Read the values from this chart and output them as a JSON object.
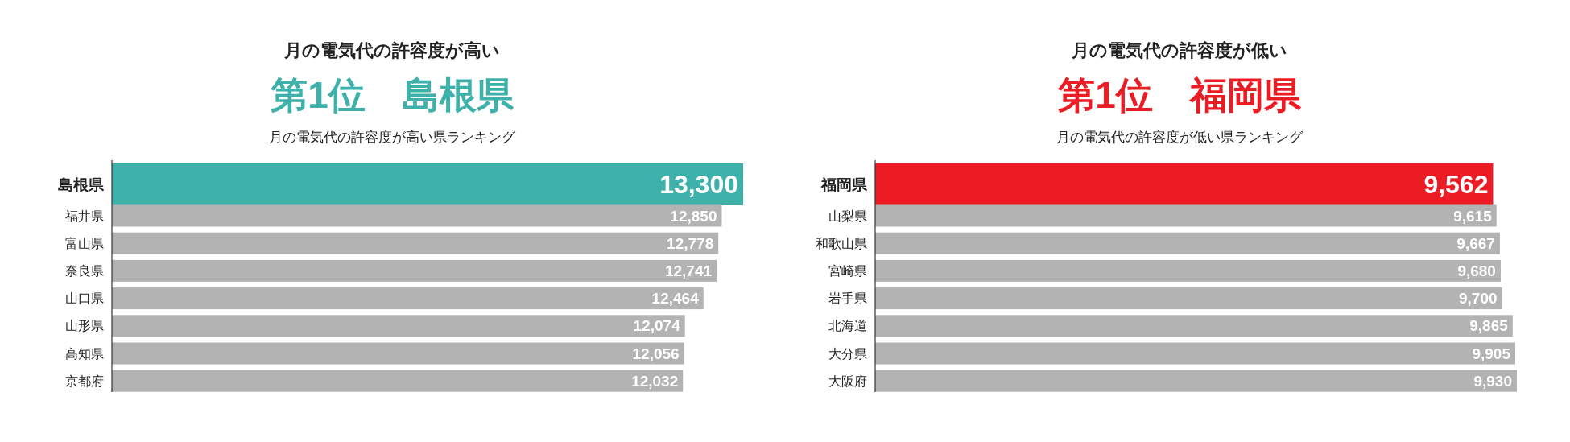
{
  "chart_data": [
    {
      "type": "bar",
      "orientation": "horizontal",
      "title": "月の電気代の許容度が高い",
      "subtitle": "第1位　島根県",
      "annotations": [
        "月の電気代の許容度が高い県ランキング"
      ],
      "categories": [
        "島根県",
        "福井県",
        "富山県",
        "奈良県",
        "山口県",
        "山形県",
        "高知県",
        "京都府"
      ],
      "values": [
        13300,
        12850,
        12778,
        12741,
        12464,
        12074,
        12056,
        12032
      ],
      "value_labels": [
        "13,300",
        "12,850",
        "12,778",
        "12,741",
        "12,464",
        "12,074",
        "12,056",
        "12,032"
      ],
      "colors": [
        "#3eb1aa",
        "#b3b3b3",
        "#b3b3b3",
        "#b3b3b3",
        "#b3b3b3",
        "#b3b3b3",
        "#b3b3b3",
        "#b3b3b3"
      ],
      "tick_labels": "y"
    },
    {
      "type": "bar",
      "orientation": "horizontal",
      "title": "月の電気代の許容度が低い",
      "subtitle": "第1位　福岡県",
      "annotations": [
        "月の電気代の許容度が低い県ランキング"
      ],
      "categories": [
        "福岡県",
        "山梨県",
        "和歌山県",
        "宮崎県",
        "岩手県",
        "北海道",
        "大分県",
        "大阪府"
      ],
      "values": [
        9562,
        9615,
        9667,
        9680,
        9700,
        9865,
        9905,
        9930
      ],
      "value_labels": [
        "9,562",
        "9,615",
        "9,667",
        "9,680",
        "9,700",
        "9,865",
        "9,905",
        "9,930"
      ],
      "colors": [
        "#ec1c24",
        "#b3b3b3",
        "#b3b3b3",
        "#b3b3b3",
        "#b3b3b3",
        "#b3b3b3",
        "#b3b3b3",
        "#b3b3b3"
      ],
      "tick_labels": "y"
    }
  ]
}
